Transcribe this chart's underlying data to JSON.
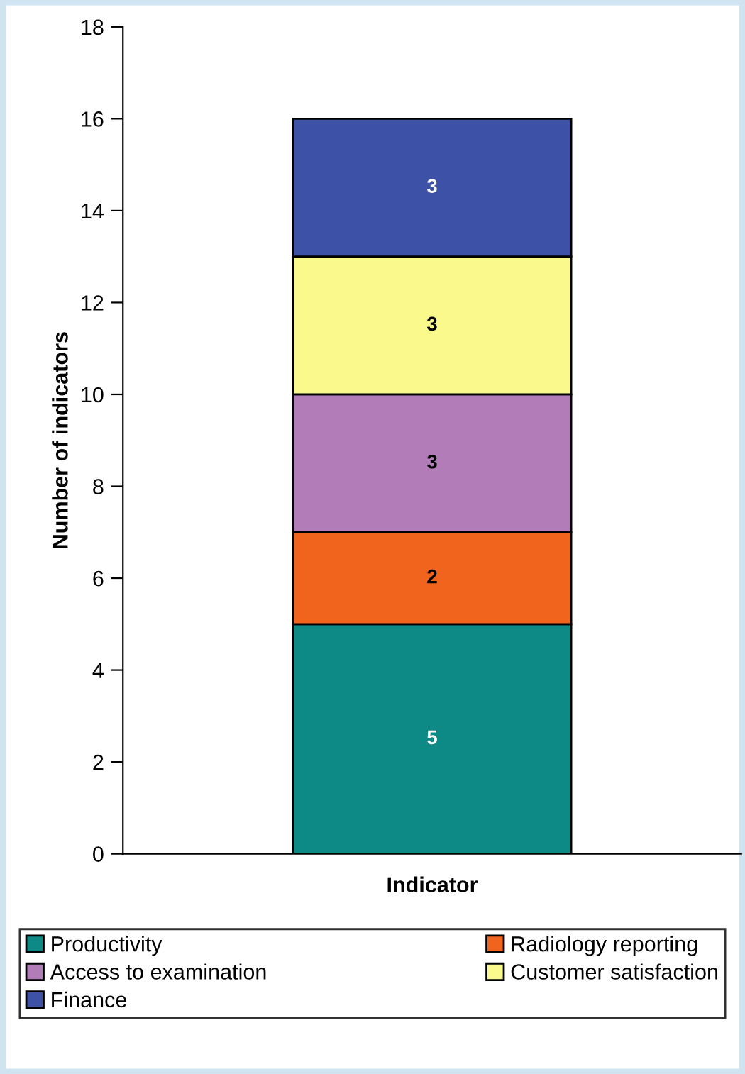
{
  "chart_data": {
    "type": "bar",
    "stacked": true,
    "categories": [
      null
    ],
    "xlabel": "Indicator",
    "ylabel": "Number of indicators",
    "series": [
      {
        "name": "Productivity",
        "color": "#0e8a86",
        "values": [
          5
        ]
      },
      {
        "name": "Radiology reporting",
        "color": "#f0641e",
        "values": [
          2
        ]
      },
      {
        "name": "Access to examination",
        "color": "#b27cb9",
        "values": [
          3
        ]
      },
      {
        "name": "Customer satisfaction",
        "color": "#fafa8c",
        "values": [
          3
        ]
      },
      {
        "name": "Finance",
        "color": "#3d52a6",
        "values": [
          3
        ]
      }
    ],
    "ylim": [
      0,
      18
    ],
    "yticks": [
      0,
      2,
      4,
      6,
      8,
      10,
      12,
      14,
      16,
      18
    ],
    "data_labels": true,
    "legend": "bottom",
    "grid": false
  }
}
